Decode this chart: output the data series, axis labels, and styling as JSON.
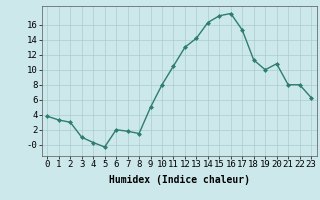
{
  "x": [
    0,
    1,
    2,
    3,
    4,
    5,
    6,
    7,
    8,
    9,
    10,
    11,
    12,
    13,
    14,
    15,
    16,
    17,
    18,
    19,
    20,
    21,
    22,
    23
  ],
  "y": [
    3.8,
    3.3,
    3.0,
    1.0,
    0.3,
    -0.3,
    2.0,
    1.8,
    1.5,
    5.0,
    8.0,
    10.5,
    13.0,
    14.2,
    16.3,
    17.2,
    17.5,
    15.3,
    11.3,
    10.0,
    10.8,
    8.0,
    8.0,
    6.3
  ],
  "line_color": "#2e7d6e",
  "marker": "D",
  "marker_size": 2.0,
  "linewidth": 1.0,
  "bg_color": "#cce8ea",
  "grid_color": "#aacccc",
  "xlabel": "Humidex (Indice chaleur)",
  "xlabel_fontsize": 7,
  "tick_fontsize": 6.5,
  "ylim": [
    -1.5,
    18.5
  ],
  "yticks": [
    0,
    2,
    4,
    6,
    8,
    10,
    12,
    14,
    16
  ],
  "ytick_labels": [
    "-0",
    "2",
    "4",
    "6",
    "8",
    "10",
    "12",
    "14",
    "16"
  ],
  "xticks": [
    0,
    1,
    2,
    3,
    4,
    5,
    6,
    7,
    8,
    9,
    10,
    11,
    12,
    13,
    14,
    15,
    16,
    17,
    18,
    19,
    20,
    21,
    22,
    23
  ],
  "xtick_labels": [
    "0",
    "1",
    "2",
    "3",
    "4",
    "5",
    "6",
    "7",
    "8",
    "9",
    "10",
    "11",
    "12",
    "13",
    "14",
    "15",
    "16",
    "17",
    "18",
    "19",
    "20",
    "21",
    "22",
    "23"
  ]
}
